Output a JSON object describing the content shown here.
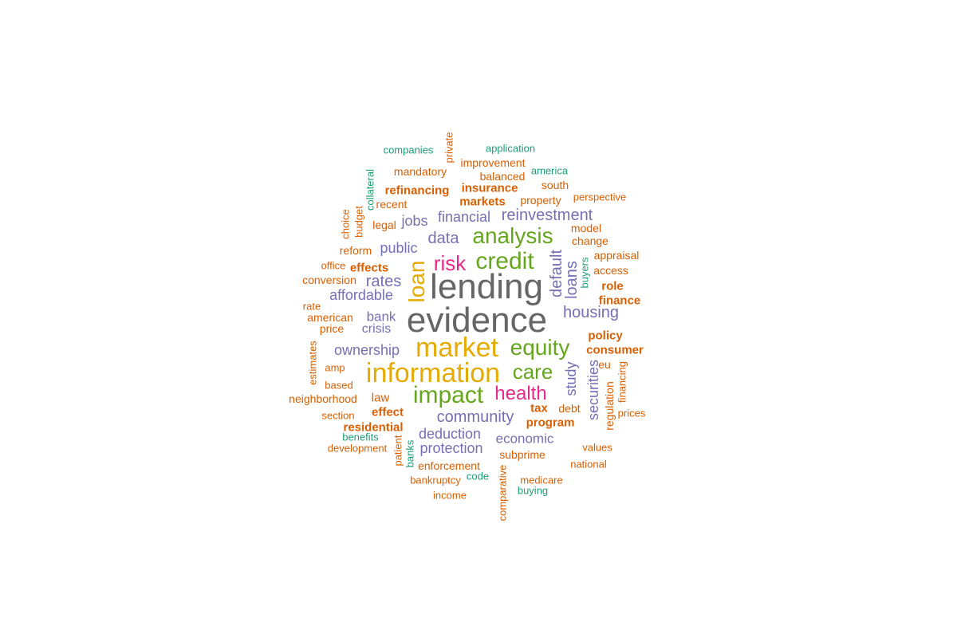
{
  "palette": {
    "teal": "#1b9e77",
    "orange": "#d95f02",
    "purple": "#7570b3",
    "magenta": "#e7298a",
    "green": "#66a61e",
    "gold": "#e6ab02",
    "gray": "#666666"
  },
  "words": [
    {
      "text": "evidence",
      "color": "gray"
    },
    {
      "text": "lending",
      "color": "gray"
    },
    {
      "text": "information",
      "color": "gold"
    },
    {
      "text": "market",
      "color": "gold"
    },
    {
      "text": "impact",
      "color": "green"
    },
    {
      "text": "credit",
      "color": "green"
    },
    {
      "text": "analysis",
      "color": "green"
    },
    {
      "text": "equity",
      "color": "green"
    },
    {
      "text": "care",
      "color": "green"
    },
    {
      "text": "loan",
      "color": "gold"
    },
    {
      "text": "risk",
      "color": "magenta"
    },
    {
      "text": "health",
      "color": "magenta"
    },
    {
      "text": "housing",
      "color": "purple"
    },
    {
      "text": "community",
      "color": "purple"
    },
    {
      "text": "reinvestment",
      "color": "purple"
    },
    {
      "text": "financial",
      "color": "purple"
    },
    {
      "text": "data",
      "color": "purple"
    },
    {
      "text": "rates",
      "color": "purple"
    },
    {
      "text": "ownership",
      "color": "purple"
    },
    {
      "text": "default",
      "color": "purple"
    },
    {
      "text": "loans",
      "color": "purple"
    },
    {
      "text": "study",
      "color": "purple"
    },
    {
      "text": "securities",
      "color": "purple"
    },
    {
      "text": "public",
      "color": "purple"
    },
    {
      "text": "jobs",
      "color": "purple"
    },
    {
      "text": "affordable",
      "color": "purple"
    },
    {
      "text": "bank",
      "color": "purple"
    },
    {
      "text": "crisis",
      "color": "purple"
    },
    {
      "text": "deduction",
      "color": "purple"
    },
    {
      "text": "protection",
      "color": "purple"
    },
    {
      "text": "economic",
      "color": "purple"
    },
    {
      "text": "refinancing",
      "color": "orange"
    },
    {
      "text": "insurance",
      "color": "orange"
    },
    {
      "text": "markets",
      "color": "orange"
    },
    {
      "text": "effects",
      "color": "orange"
    },
    {
      "text": "residential",
      "color": "orange"
    },
    {
      "text": "effect",
      "color": "orange"
    },
    {
      "text": "program",
      "color": "orange"
    },
    {
      "text": "tax",
      "color": "orange"
    },
    {
      "text": "policy",
      "color": "orange"
    },
    {
      "text": "consumer",
      "color": "orange"
    },
    {
      "text": "role",
      "color": "orange"
    },
    {
      "text": "finance",
      "color": "orange"
    },
    {
      "text": "law",
      "color": "orange"
    },
    {
      "text": "mandatory",
      "color": "orange"
    },
    {
      "text": "improvement",
      "color": "orange"
    },
    {
      "text": "balanced",
      "color": "orange"
    },
    {
      "text": "south",
      "color": "orange"
    },
    {
      "text": "property",
      "color": "orange"
    },
    {
      "text": "recent",
      "color": "orange"
    },
    {
      "text": "legal",
      "color": "orange"
    },
    {
      "text": "model",
      "color": "orange"
    },
    {
      "text": "change",
      "color": "orange"
    },
    {
      "text": "appraisal",
      "color": "orange"
    },
    {
      "text": "access",
      "color": "orange"
    },
    {
      "text": "perspective",
      "color": "orange"
    },
    {
      "text": "reform",
      "color": "orange"
    },
    {
      "text": "office",
      "color": "orange"
    },
    {
      "text": "conversion",
      "color": "orange"
    },
    {
      "text": "rate",
      "color": "orange"
    },
    {
      "text": "american",
      "color": "orange"
    },
    {
      "text": "price",
      "color": "orange"
    },
    {
      "text": "amp",
      "color": "orange"
    },
    {
      "text": "based",
      "color": "orange"
    },
    {
      "text": "neighborhood",
      "color": "orange"
    },
    {
      "text": "section",
      "color": "orange"
    },
    {
      "text": "development",
      "color": "orange"
    },
    {
      "text": "enforcement",
      "color": "orange"
    },
    {
      "text": "bankruptcy",
      "color": "orange"
    },
    {
      "text": "income",
      "color": "orange"
    },
    {
      "text": "subprime",
      "color": "orange"
    },
    {
      "text": "medicare",
      "color": "orange"
    },
    {
      "text": "national",
      "color": "orange"
    },
    {
      "text": "values",
      "color": "orange"
    },
    {
      "text": "debt",
      "color": "orange"
    },
    {
      "text": "prices",
      "color": "orange"
    },
    {
      "text": "eu",
      "color": "orange"
    },
    {
      "text": "private",
      "color": "orange"
    },
    {
      "text": "choice",
      "color": "orange"
    },
    {
      "text": "budget",
      "color": "orange"
    },
    {
      "text": "estimates",
      "color": "orange"
    },
    {
      "text": "patient",
      "color": "orange"
    },
    {
      "text": "comparative",
      "color": "orange"
    },
    {
      "text": "regulation",
      "color": "orange"
    },
    {
      "text": "financing",
      "color": "orange"
    },
    {
      "text": "companies",
      "color": "teal"
    },
    {
      "text": "application",
      "color": "teal"
    },
    {
      "text": "america",
      "color": "teal"
    },
    {
      "text": "collateral",
      "color": "teal"
    },
    {
      "text": "buyers",
      "color": "teal"
    },
    {
      "text": "benefits",
      "color": "teal"
    },
    {
      "text": "banks",
      "color": "teal"
    },
    {
      "text": "code",
      "color": "teal"
    },
    {
      "text": "buying",
      "color": "teal"
    }
  ]
}
